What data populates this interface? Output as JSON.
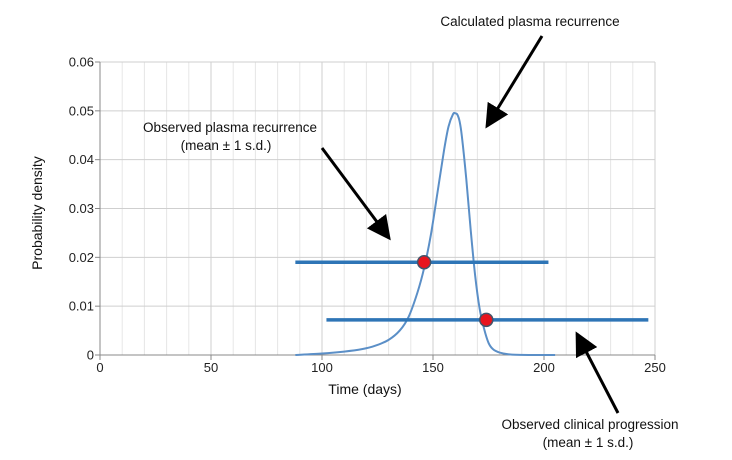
{
  "chart_data": {
    "type": "line",
    "xlabel": "Time (days)",
    "ylabel": "Probability density",
    "xlim": [
      0,
      250
    ],
    "ylim": [
      0,
      0.06
    ],
    "x_ticks": [
      0,
      50,
      100,
      150,
      200,
      250
    ],
    "y_ticks": [
      0,
      0.01,
      0.02,
      0.03,
      0.04,
      0.05,
      0.06
    ],
    "x_tick_labels": [
      "0",
      "50",
      "100",
      "150",
      "200",
      "250"
    ],
    "y_tick_labels": [
      "0",
      "0.01",
      "0.02",
      "0.03",
      "0.04",
      "0.05",
      "0.06"
    ],
    "grid": true,
    "series": [
      {
        "x": [
          88,
          100,
          110,
          118,
          124,
          130,
          135,
          139,
          143,
          146,
          149,
          152,
          155,
          157,
          159,
          160,
          161,
          162,
          163,
          165,
          167,
          169,
          171,
          173,
          175,
          177,
          180,
          185,
          195,
          205
        ],
        "y": [
          0.0,
          0.0003,
          0.0007,
          0.0012,
          0.0019,
          0.0031,
          0.005,
          0.0078,
          0.0128,
          0.0178,
          0.0245,
          0.0332,
          0.042,
          0.0468,
          0.0493,
          0.0495,
          0.0492,
          0.0478,
          0.0448,
          0.036,
          0.0255,
          0.0162,
          0.0095,
          0.0054,
          0.0025,
          0.0012,
          0.0005,
          0.0001,
          0.0,
          0.0
        ],
        "color": "#5b8fc7"
      }
    ],
    "intervals": [
      {
        "x_start": 88,
        "x_end": 202,
        "y": 0.019,
        "point_x": 146,
        "point_y": 0.019,
        "color": "#2e75b6",
        "point_color": "#e8141e"
      },
      {
        "x_start": 102,
        "x_end": 247,
        "y": 0.0072,
        "point_x": 174,
        "point_y": 0.0072,
        "color": "#2e75b6",
        "point_color": "#e8141e"
      }
    ],
    "annotations": [
      {
        "lines": [
          "Calculated plasma recurrence"
        ]
      },
      {
        "lines": [
          "Observed plasma recurrence",
          "(mean ± 1 s.d.)"
        ]
      },
      {
        "lines": [
          "Observed clinical progression",
          "(mean ± 1 s.d.)"
        ]
      }
    ]
  }
}
